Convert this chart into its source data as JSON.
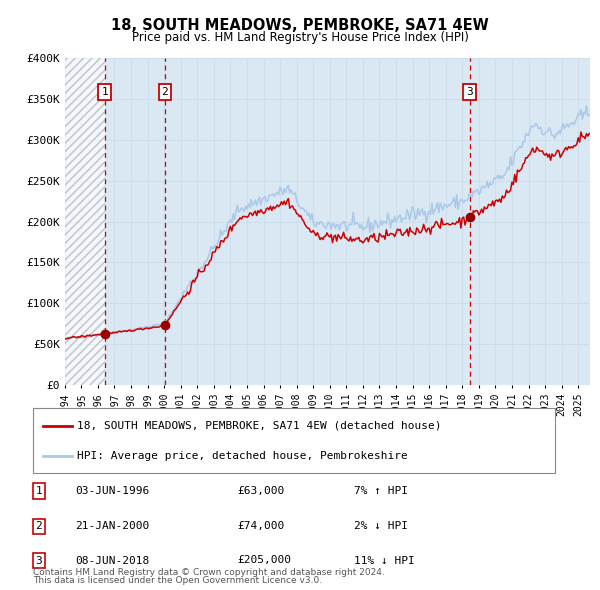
{
  "title": "18, SOUTH MEADOWS, PEMBROKE, SA71 4EW",
  "subtitle": "Price paid vs. HM Land Registry's House Price Index (HPI)",
  "ylim": [
    0,
    400000
  ],
  "yticks": [
    0,
    50000,
    100000,
    150000,
    200000,
    250000,
    300000,
    350000,
    400000
  ],
  "ytick_labels": [
    "£0",
    "£50K",
    "£100K",
    "£150K",
    "£200K",
    "£250K",
    "£300K",
    "£350K",
    "£400K"
  ],
  "xlim_start": 1994.0,
  "xlim_end": 2025.7,
  "hpi_color": "#aac8e8",
  "price_color": "#cc0000",
  "sale_dot_color": "#990000",
  "dashed_line_color": "#cc0000",
  "shade_color": "#d8e8f4",
  "grid_color": "#b8cfe0",
  "plot_bg_color": "#ddeaf5",
  "sale1_x": 1996.42,
  "sale1_y": 63000,
  "sale2_x": 2000.05,
  "sale2_y": 74000,
  "sale3_x": 2018.44,
  "sale3_y": 205000,
  "legend_label_price": "18, SOUTH MEADOWS, PEMBROKE, SA71 4EW (detached house)",
  "legend_label_hpi": "HPI: Average price, detached house, Pembrokeshire",
  "table_entries": [
    {
      "num": "1",
      "date": "03-JUN-1996",
      "price": "£63,000",
      "hpi": "7% ↑ HPI"
    },
    {
      "num": "2",
      "date": "21-JAN-2000",
      "price": "£74,000",
      "hpi": "2% ↓ HPI"
    },
    {
      "num": "3",
      "date": "08-JUN-2018",
      "price": "£205,000",
      "hpi": "11% ↓ HPI"
    }
  ],
  "footnote1": "Contains HM Land Registry data © Crown copyright and database right 2024.",
  "footnote2": "This data is licensed under the Open Government Licence v3.0."
}
